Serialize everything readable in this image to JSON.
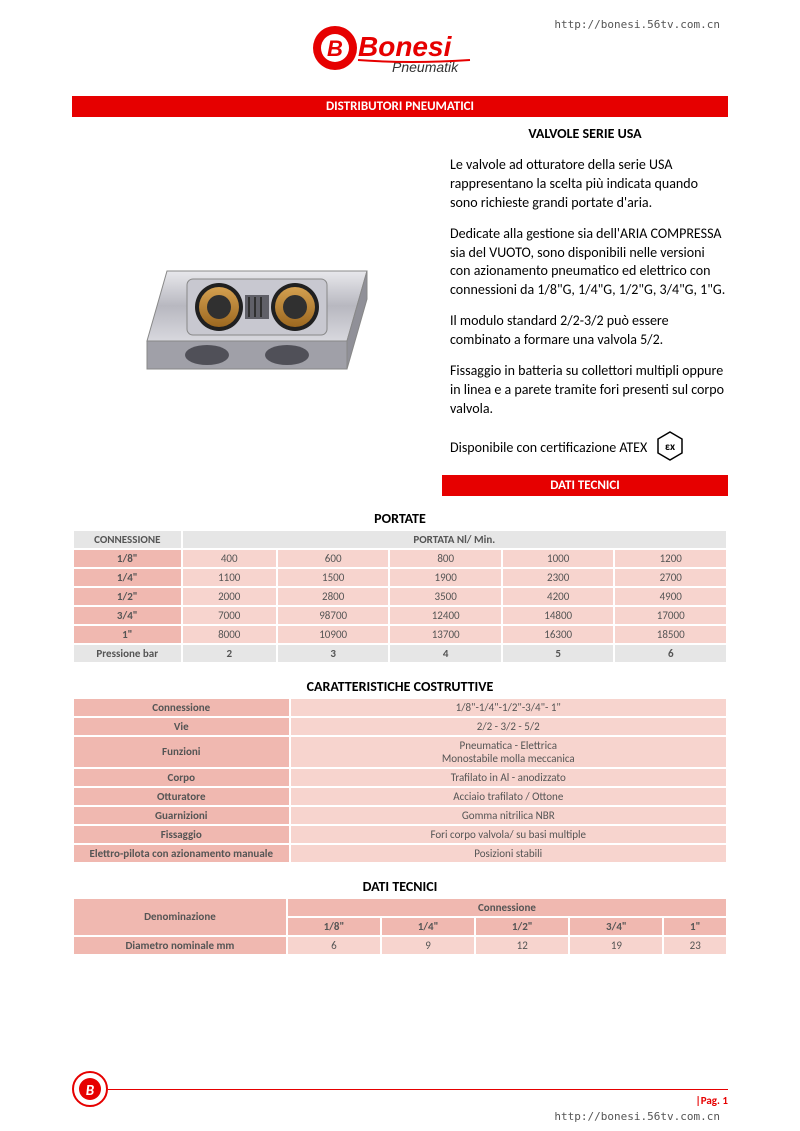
{
  "url_top": "http://bonesi.56tv.com.cn",
  "url_bottom": "http://bonesi.56tv.com.cn",
  "brand": {
    "name": "Bonesi",
    "sub": "Pneumatik"
  },
  "main_title": "DISTRIBUTORI PNEUMATICI",
  "subtitle": "VALVOLE SERIE USA",
  "paragraphs": {
    "p1": "Le valvole ad otturatore della serie USA rappresentano la scelta più indicata quando sono richieste grandi portate d'aria.",
    "p2": "Dedicate alla gestione sia dell'ARIA COMPRESSA sia del VUOTO, sono disponibili nelle versioni con azionamento pneumatico ed elettrico con connessioni da 1/8\"G, 1/4\"G, 1/2\"G, 3/4\"G, 1\"G.",
    "p3": "Il modulo standard 2/2-3/2 può essere combinato a formare una valvola 5/2.",
    "p4": "Fissaggio in batteria su collettori multipli oppure in linea e a parete tramite fori presenti sul corpo valvola.",
    "p5": "Disponibile con certificazione ATEX"
  },
  "section_dati": "DATI TECNICI",
  "portate": {
    "title": "PORTATE",
    "col_conn": "CONNESSIONE",
    "col_flow": "PORTATA Nl/ Min.",
    "rows": [
      {
        "conn": "1/8\"",
        "v": [
          "400",
          "600",
          "800",
          "1000",
          "1200"
        ]
      },
      {
        "conn": "1/4\"",
        "v": [
          "1100",
          "1500",
          "1900",
          "2300",
          "2700"
        ]
      },
      {
        "conn": "1/2\"",
        "v": [
          "2000",
          "2800",
          "3500",
          "4200",
          "4900"
        ]
      },
      {
        "conn": "3/4\"",
        "v": [
          "7000",
          "98700",
          "12400",
          "14800",
          "17000"
        ]
      },
      {
        "conn": "1\"",
        "v": [
          "8000",
          "10900",
          "13700",
          "16300",
          "18500"
        ]
      }
    ],
    "press_label": "Pressione bar",
    "press": [
      "2",
      "3",
      "4",
      "5",
      "6"
    ]
  },
  "caratt": {
    "title": "CARATTERISTICHE COSTRUTTIVE",
    "rows": [
      {
        "k": "Connessione",
        "v": "1/8\"-1/4\"-1/2\"-3/4\"- 1\""
      },
      {
        "k": "Vie",
        "v": "2/2 - 3/2 - 5/2"
      },
      {
        "k": "Funzioni",
        "v": "Pneumatica - Elettrica\nMonostabile molla meccanica"
      },
      {
        "k": "Corpo",
        "v": "Trafilato in Al - anodizzato"
      },
      {
        "k": "Otturatore",
        "v": "Acciaio trafilato / Ottone"
      },
      {
        "k": "Guarnizioni",
        "v": "Gomma nitrilica NBR"
      },
      {
        "k": "Fissaggio",
        "v": "Fori corpo valvola/ su basi multiple"
      },
      {
        "k": "Elettro-pilota con azionamento manuale",
        "v": "Posizioni stabili"
      }
    ]
  },
  "dati3": {
    "title": "DATI TECNICI",
    "denom": "Denominazione",
    "conn": "Connessione",
    "cols": [
      "1/8\"",
      "1/4\"",
      "1/2\"",
      "3/4\"",
      "1\""
    ],
    "rows": [
      {
        "k": "Diametro nominale mm",
        "v": [
          "6",
          "9",
          "12",
          "19",
          "23"
        ]
      }
    ]
  },
  "page_label": "|Pag. 1",
  "colors": {
    "red": "#e60000",
    "pink_hdr": "#f0b8b0",
    "pink_cell": "#f7d4ce",
    "grey_hdr": "#e6e6e6",
    "text_grey": "#555555"
  }
}
